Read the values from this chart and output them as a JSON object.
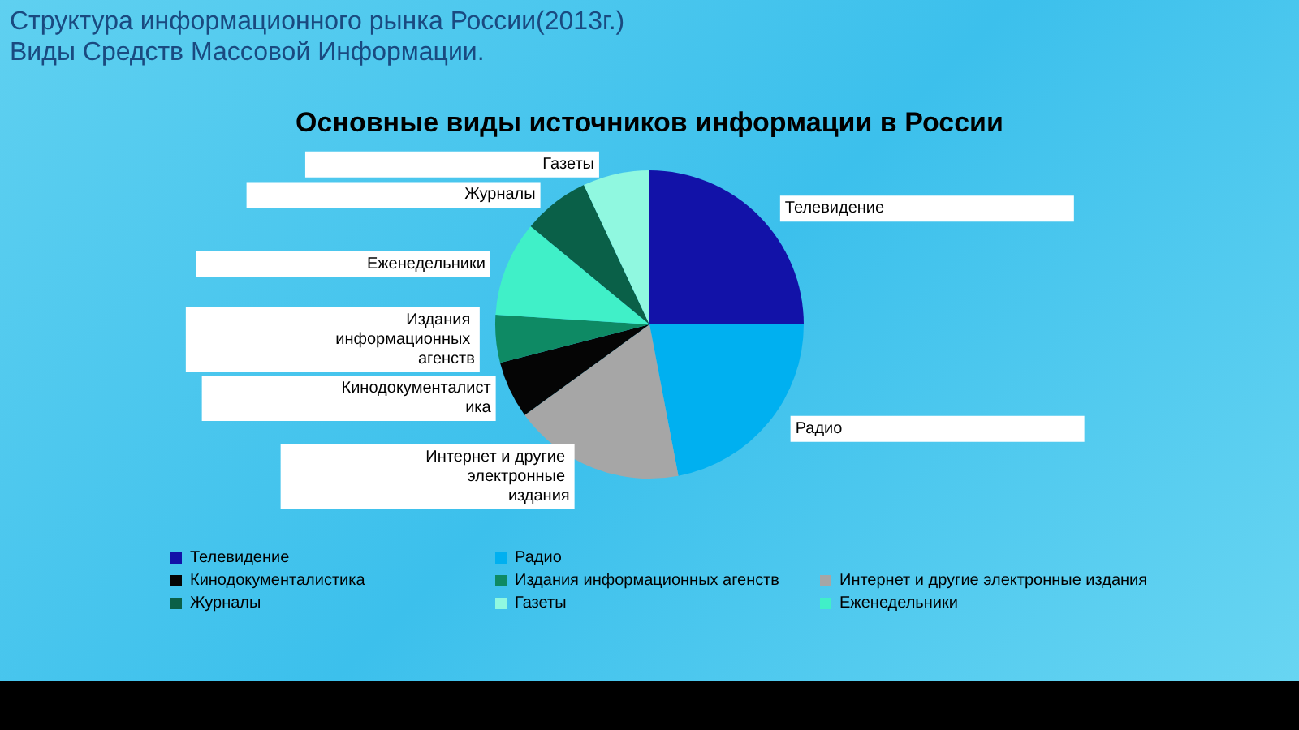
{
  "chart_data": {
    "type": "pie",
    "title": "Основные виды источников информации в России",
    "annotations": [
      "Структура информационного рынка России(2013г.)",
      "Виды Средств Массовой Информации."
    ],
    "categories": [
      "Телевидение",
      "Радио",
      "Интернет и другие электронные издания",
      "Кинодокументалистика",
      "Издания информационных агенств",
      "Еженедельники",
      "Журналы",
      "Газеты"
    ],
    "values": [
      25,
      22,
      18,
      6,
      5,
      10,
      7,
      7
    ],
    "colors": [
      "#1212a8",
      "#00b0f0",
      "#a6a6a6",
      "#050505",
      "#0e8a64",
      "#40f0c8",
      "#0a6048",
      "#90f8e0"
    ],
    "legend": "bottom"
  }
}
